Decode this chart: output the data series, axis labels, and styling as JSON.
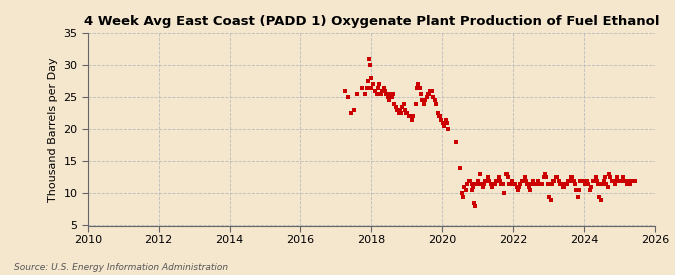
{
  "title": "4 Week Avg East Coast (PADD 1) Oxygenate Plant Production of Fuel Ethanol",
  "ylabel": "Thousand Barrels per Day",
  "source": "Source: U.S. Energy Information Administration",
  "background_color": "#f5e6ce",
  "plot_bg_color": "#f5e6ce",
  "marker_color": "#cc0000",
  "marker_size": 5,
  "xlim": [
    2010,
    2026
  ],
  "ylim": [
    5,
    35
  ],
  "xticks": [
    2010,
    2012,
    2014,
    2016,
    2018,
    2020,
    2022,
    2024,
    2026
  ],
  "yticks": [
    5,
    10,
    15,
    20,
    25,
    30,
    35
  ],
  "data_points": [
    [
      2017.25,
      26.0
    ],
    [
      2017.35,
      25.0
    ],
    [
      2017.42,
      22.5
    ],
    [
      2017.5,
      23.0
    ],
    [
      2017.6,
      25.5
    ],
    [
      2017.75,
      26.5
    ],
    [
      2017.83,
      25.5
    ],
    [
      2017.88,
      26.5
    ],
    [
      2017.92,
      27.5
    ],
    [
      2017.94,
      31.0
    ],
    [
      2017.96,
      30.0
    ],
    [
      2017.98,
      28.0
    ],
    [
      2018.0,
      26.5
    ],
    [
      2018.04,
      27.0
    ],
    [
      2018.1,
      26.0
    ],
    [
      2018.15,
      25.5
    ],
    [
      2018.19,
      26.5
    ],
    [
      2018.23,
      27.0
    ],
    [
      2018.27,
      25.5
    ],
    [
      2018.31,
      26.0
    ],
    [
      2018.35,
      26.5
    ],
    [
      2018.38,
      26.0
    ],
    [
      2018.42,
      25.5
    ],
    [
      2018.46,
      25.0
    ],
    [
      2018.5,
      24.5
    ],
    [
      2018.54,
      25.5
    ],
    [
      2018.58,
      25.0
    ],
    [
      2018.62,
      25.5
    ],
    [
      2018.65,
      24.0
    ],
    [
      2018.69,
      23.5
    ],
    [
      2018.73,
      23.0
    ],
    [
      2018.77,
      22.5
    ],
    [
      2018.81,
      23.0
    ],
    [
      2018.85,
      22.5
    ],
    [
      2018.88,
      23.5
    ],
    [
      2018.92,
      24.0
    ],
    [
      2018.96,
      23.0
    ],
    [
      2018.99,
      22.5
    ],
    [
      2019.02,
      22.5
    ],
    [
      2019.06,
      22.0
    ],
    [
      2019.1,
      22.0
    ],
    [
      2019.14,
      21.5
    ],
    [
      2019.18,
      22.0
    ],
    [
      2019.25,
      24.0
    ],
    [
      2019.29,
      26.5
    ],
    [
      2019.33,
      27.0
    ],
    [
      2019.37,
      26.5
    ],
    [
      2019.4,
      25.5
    ],
    [
      2019.44,
      24.5
    ],
    [
      2019.48,
      24.0
    ],
    [
      2019.52,
      24.5
    ],
    [
      2019.56,
      25.0
    ],
    [
      2019.6,
      25.5
    ],
    [
      2019.63,
      25.5
    ],
    [
      2019.67,
      26.0
    ],
    [
      2019.71,
      26.0
    ],
    [
      2019.75,
      25.0
    ],
    [
      2019.79,
      24.5
    ],
    [
      2019.83,
      24.0
    ],
    [
      2019.87,
      22.5
    ],
    [
      2019.9,
      22.0
    ],
    [
      2019.94,
      22.0
    ],
    [
      2019.98,
      21.5
    ],
    [
      2020.02,
      21.0
    ],
    [
      2020.06,
      20.5
    ],
    [
      2020.1,
      21.5
    ],
    [
      2020.13,
      21.0
    ],
    [
      2020.17,
      20.0
    ],
    [
      2020.38,
      18.0
    ],
    [
      2020.5,
      14.0
    ],
    [
      2020.56,
      10.0
    ],
    [
      2020.6,
      9.5
    ],
    [
      2020.63,
      11.0
    ],
    [
      2020.67,
      10.5
    ],
    [
      2020.71,
      11.5
    ],
    [
      2020.75,
      12.0
    ],
    [
      2020.79,
      12.0
    ],
    [
      2020.83,
      11.5
    ],
    [
      2020.85,
      10.5
    ],
    [
      2020.88,
      11.0
    ],
    [
      2020.9,
      8.5
    ],
    [
      2020.92,
      8.0
    ],
    [
      2020.96,
      11.5
    ],
    [
      2021.0,
      12.0
    ],
    [
      2021.04,
      11.5
    ],
    [
      2021.07,
      13.0
    ],
    [
      2021.1,
      11.5
    ],
    [
      2021.14,
      11.0
    ],
    [
      2021.17,
      11.5
    ],
    [
      2021.21,
      12.0
    ],
    [
      2021.25,
      12.0
    ],
    [
      2021.29,
      12.5
    ],
    [
      2021.33,
      12.0
    ],
    [
      2021.37,
      11.5
    ],
    [
      2021.4,
      11.0
    ],
    [
      2021.44,
      11.5
    ],
    [
      2021.48,
      11.5
    ],
    [
      2021.52,
      12.0
    ],
    [
      2021.56,
      12.0
    ],
    [
      2021.6,
      12.5
    ],
    [
      2021.63,
      12.0
    ],
    [
      2021.67,
      11.5
    ],
    [
      2021.71,
      11.5
    ],
    [
      2021.75,
      10.0
    ],
    [
      2021.79,
      13.0
    ],
    [
      2021.83,
      13.0
    ],
    [
      2021.87,
      12.5
    ],
    [
      2021.9,
      11.5
    ],
    [
      2021.94,
      11.5
    ],
    [
      2021.98,
      12.0
    ],
    [
      2022.02,
      11.5
    ],
    [
      2022.06,
      11.5
    ],
    [
      2022.1,
      11.0
    ],
    [
      2022.14,
      10.5
    ],
    [
      2022.17,
      11.0
    ],
    [
      2022.21,
      11.5
    ],
    [
      2022.25,
      12.0
    ],
    [
      2022.29,
      12.0
    ],
    [
      2022.33,
      12.5
    ],
    [
      2022.37,
      12.0
    ],
    [
      2022.4,
      11.5
    ],
    [
      2022.44,
      11.0
    ],
    [
      2022.48,
      10.5
    ],
    [
      2022.52,
      11.5
    ],
    [
      2022.56,
      12.0
    ],
    [
      2022.6,
      11.5
    ],
    [
      2022.63,
      11.5
    ],
    [
      2022.67,
      11.5
    ],
    [
      2022.71,
      12.0
    ],
    [
      2022.75,
      11.5
    ],
    [
      2022.79,
      11.5
    ],
    [
      2022.83,
      11.5
    ],
    [
      2022.87,
      12.5
    ],
    [
      2022.9,
      13.0
    ],
    [
      2022.94,
      12.5
    ],
    [
      2022.98,
      11.5
    ],
    [
      2023.02,
      9.5
    ],
    [
      2023.06,
      9.0
    ],
    [
      2023.1,
      11.5
    ],
    [
      2023.14,
      12.0
    ],
    [
      2023.17,
      12.0
    ],
    [
      2023.21,
      12.5
    ],
    [
      2023.25,
      12.5
    ],
    [
      2023.29,
      12.0
    ],
    [
      2023.33,
      11.5
    ],
    [
      2023.37,
      11.5
    ],
    [
      2023.4,
      11.0
    ],
    [
      2023.44,
      11.0
    ],
    [
      2023.48,
      11.5
    ],
    [
      2023.52,
      11.5
    ],
    [
      2023.56,
      12.0
    ],
    [
      2023.6,
      12.0
    ],
    [
      2023.63,
      12.5
    ],
    [
      2023.67,
      12.5
    ],
    [
      2023.71,
      12.0
    ],
    [
      2023.75,
      11.5
    ],
    [
      2023.79,
      10.5
    ],
    [
      2023.83,
      9.5
    ],
    [
      2023.87,
      10.5
    ],
    [
      2023.9,
      12.0
    ],
    [
      2023.94,
      12.0
    ],
    [
      2023.98,
      12.0
    ],
    [
      2024.02,
      11.5
    ],
    [
      2024.06,
      11.5
    ],
    [
      2024.1,
      12.0
    ],
    [
      2024.13,
      11.5
    ],
    [
      2024.17,
      10.5
    ],
    [
      2024.21,
      11.0
    ],
    [
      2024.25,
      12.0
    ],
    [
      2024.29,
      12.0
    ],
    [
      2024.33,
      12.5
    ],
    [
      2024.37,
      12.0
    ],
    [
      2024.4,
      11.5
    ],
    [
      2024.44,
      9.5
    ],
    [
      2024.48,
      9.0
    ],
    [
      2024.52,
      11.5
    ],
    [
      2024.56,
      12.0
    ],
    [
      2024.6,
      12.5
    ],
    [
      2024.63,
      11.5
    ],
    [
      2024.67,
      11.0
    ],
    [
      2024.71,
      13.0
    ],
    [
      2024.75,
      12.5
    ],
    [
      2024.79,
      12.0
    ],
    [
      2024.83,
      12.0
    ],
    [
      2024.87,
      11.5
    ],
    [
      2024.9,
      12.0
    ],
    [
      2024.94,
      12.5
    ],
    [
      2024.98,
      12.0
    ],
    [
      2025.02,
      12.0
    ],
    [
      2025.06,
      12.0
    ],
    [
      2025.1,
      12.5
    ],
    [
      2025.14,
      12.0
    ],
    [
      2025.18,
      12.0
    ],
    [
      2025.22,
      11.5
    ],
    [
      2025.25,
      12.0
    ],
    [
      2025.29,
      11.5
    ],
    [
      2025.33,
      12.0
    ],
    [
      2025.37,
      12.0
    ],
    [
      2025.4,
      12.0
    ],
    [
      2025.44,
      12.0
    ]
  ]
}
